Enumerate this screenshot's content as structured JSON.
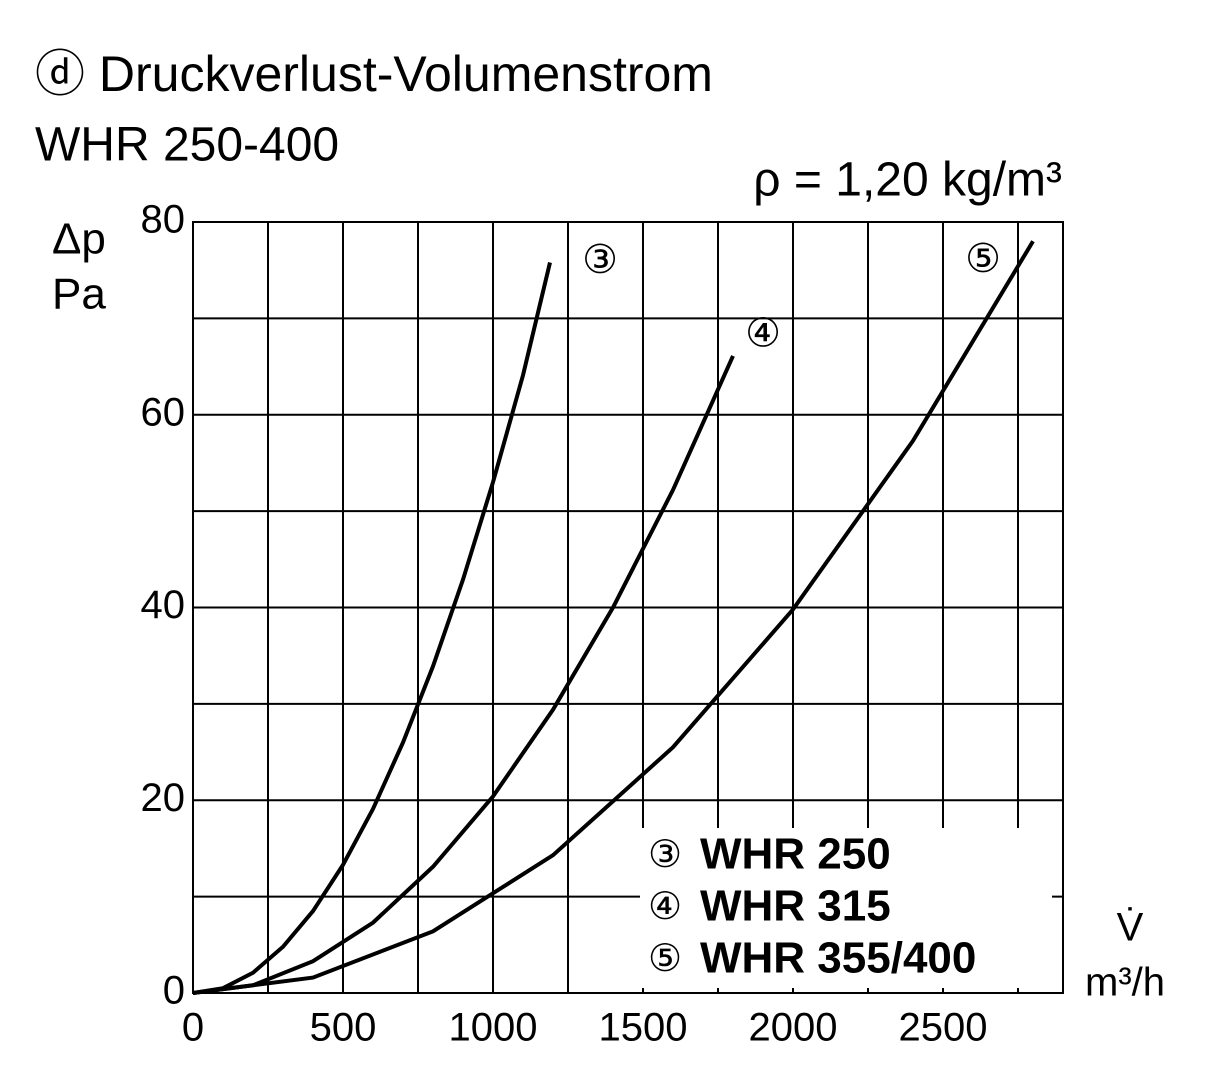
{
  "chart_data": {
    "type": "line",
    "title": "ⓓ Druckverlust-Volumenstrom",
    "subtitle": "WHR 250-400",
    "annotation": "ρ = 1,20 kg/m³",
    "y_label": [
      "Δp",
      "Pa"
    ],
    "x_label": [
      "V̇",
      "m³/h"
    ],
    "xlim": [
      0,
      2900
    ],
    "ylim": [
      0,
      80
    ],
    "xticks": [
      0,
      500,
      1000,
      1500,
      2000,
      2500
    ],
    "x_minor_ticks": [
      250,
      750,
      1250,
      1750,
      2250,
      2750
    ],
    "yticks": [
      0,
      20,
      40,
      60,
      80
    ],
    "y_minor_ticks": [
      10,
      30,
      50,
      70
    ],
    "grid": true,
    "series": [
      {
        "name": "WHR 250",
        "marker": "③",
        "color": "#000000",
        "x": [
          0,
          100,
          200,
          300,
          400,
          500,
          600,
          700,
          800,
          900,
          1000,
          1100,
          1190
        ],
        "values": [
          0,
          0.5,
          2.1,
          4.8,
          8.5,
          13.3,
          19.1,
          26.0,
          33.9,
          42.9,
          53.0,
          64.1,
          75.8
        ]
      },
      {
        "name": "WHR 315",
        "marker": "④",
        "color": "#000000",
        "x": [
          0,
          200,
          400,
          600,
          800,
          1000,
          1200,
          1400,
          1600,
          1800
        ],
        "values": [
          0,
          0.8,
          3.3,
          7.3,
          13.1,
          20.4,
          29.4,
          40.0,
          52.2,
          66.1
        ]
      },
      {
        "name": "WHR 355/400",
        "marker": "⑤",
        "color": "#000000",
        "x": [
          0,
          400,
          800,
          1200,
          1600,
          2000,
          2400,
          2800
        ],
        "values": [
          0,
          1.6,
          6.4,
          14.3,
          25.5,
          39.8,
          57.3,
          78.0
        ]
      }
    ]
  }
}
